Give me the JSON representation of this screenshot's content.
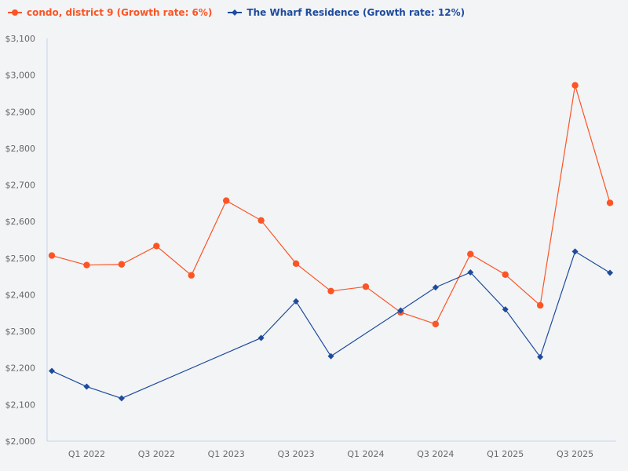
{
  "chart_data": {
    "type": "line",
    "title": "",
    "xlabel": "",
    "ylabel": "",
    "categories": [
      "Q4 2021",
      "Q1 2022",
      "Q2 2022",
      "Q3 2022",
      "Q4 2022",
      "Q1 2023",
      "Q2 2023",
      "Q3 2023",
      "Q4 2023",
      "Q1 2024",
      "Q2 2024",
      "Q3 2024",
      "Q4 2024",
      "Q1 2025",
      "Q2 2025",
      "Q3 2025",
      "Q4 2025"
    ],
    "x_tick_labels": [
      "Q1 2022",
      "Q3 2022",
      "Q1 2023",
      "Q3 2023",
      "Q1 2024",
      "Q3 2024",
      "Q1 2025",
      "Q3 2025"
    ],
    "ylim": [
      2000,
      3100
    ],
    "y_ticks": [
      2000,
      2100,
      2200,
      2300,
      2400,
      2500,
      2600,
      2700,
      2800,
      2900,
      3000,
      3100
    ],
    "y_tick_labels": [
      "$2,000",
      "$2,100",
      "$2,200",
      "$2,300",
      "$2,400",
      "$2,500",
      "$2,600",
      "$2,700",
      "$2,800",
      "$2,900",
      "$3,000",
      "$3,100"
    ],
    "grid": false,
    "legend_position": "top-left",
    "series": [
      {
        "name": "condo, district 9 (Growth rate: 6%)",
        "color": "#fc5424",
        "marker": "circle",
        "values": [
          2507,
          2481,
          2483,
          2533,
          2453,
          2657,
          2603,
          2485,
          2410,
          2422,
          2352,
          2320,
          2511,
          2455,
          2371,
          2972,
          2651
        ]
      },
      {
        "name": "The Wharf Residence (Growth rate: 12%)",
        "color": "#1e4b9c",
        "marker": "diamond",
        "values": [
          2192,
          2149,
          2117,
          null,
          null,
          null,
          2282,
          2382,
          2232,
          null,
          2357,
          2420,
          2461,
          2360,
          2230,
          2518,
          2460
        ]
      }
    ]
  }
}
